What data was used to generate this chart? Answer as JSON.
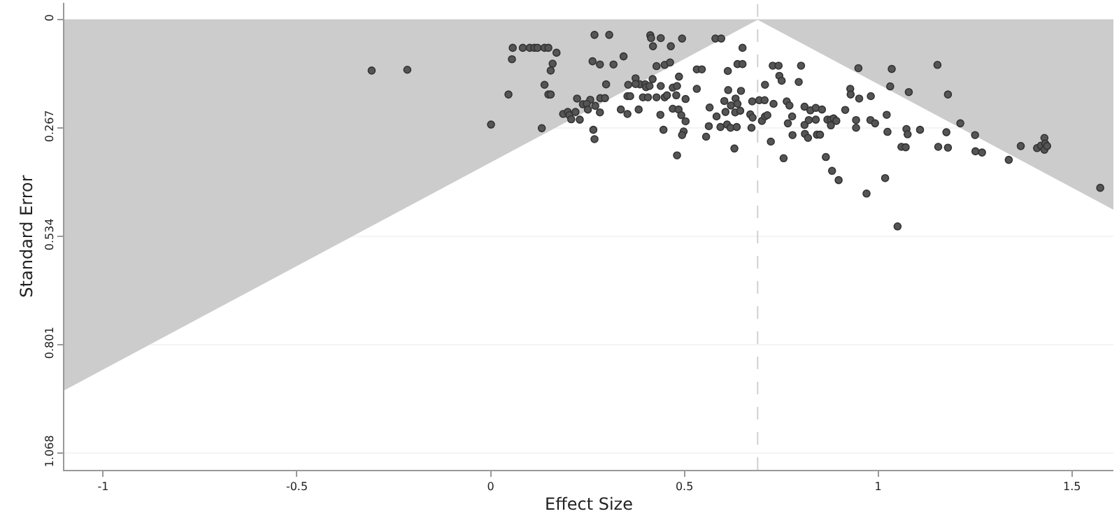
{
  "chart_data": {
    "type": "scatter",
    "xlabel": "Effect Size",
    "ylabel": "Standard Error",
    "xlim": [
      -1.1,
      1.607
    ],
    "ylim": [
      1.11,
      -0.041
    ],
    "xticks": [
      -1,
      -0.5,
      0,
      0.5,
      1,
      1.5
    ],
    "yticks": [
      0,
      0.267,
      0.534,
      0.801,
      1.068
    ],
    "grid": "y",
    "ref_lines": [
      {
        "axis": "x",
        "value": 0.689,
        "color": "#d0d0d0",
        "line_style": "dashed"
      }
    ],
    "series": [
      {
        "type": "area",
        "color": "#cccccc",
        "x": [
          -1.1,
          0.689,
          1.607
        ],
        "values": [
          0.913,
          0,
          0.468
        ]
      },
      {
        "color": "#555555",
        "marker": "circle",
        "x": [
          -0.307,
          -0.215,
          0.057,
          0.083,
          0.101,
          0.113,
          0.121,
          0.139,
          0.149,
          0.17,
          0.055,
          0.16,
          0.155,
          0.139,
          0.046,
          0.149,
          0.155,
          0.001,
          0.132,
          0.268,
          0.306,
          0.263,
          0.282,
          0.317,
          0.298,
          0.283,
          0.295,
          0.223,
          0.257,
          0.238,
          0.248,
          0.251,
          0.27,
          0.282,
          0.187,
          0.199,
          0.203,
          0.219,
          0.208,
          0.23,
          0.265,
          0.268,
          0.343,
          0.412,
          0.414,
          0.439,
          0.494,
          0.419,
          0.465,
          0.428,
          0.449,
          0.463,
          0.374,
          0.385,
          0.374,
          0.399,
          0.401,
          0.41,
          0.418,
          0.439,
          0.355,
          0.353,
          0.36,
          0.393,
          0.406,
          0.428,
          0.449,
          0.455,
          0.47,
          0.481,
          0.479,
          0.503,
          0.486,
          0.336,
          0.353,
          0.382,
          0.438,
          0.47,
          0.485,
          0.492,
          0.503,
          0.446,
          0.498,
          0.494,
          0.481,
          0.532,
          0.545,
          0.532,
          0.58,
          0.595,
          0.65,
          0.637,
          0.65,
          0.612,
          0.613,
          0.646,
          0.632,
          0.603,
          0.62,
          0.637,
          0.565,
          0.583,
          0.606,
          0.631,
          0.644,
          0.593,
          0.61,
          0.619,
          0.635,
          0.563,
          0.556,
          0.629,
          0.675,
          0.693,
          0.707,
          0.67,
          0.676,
          0.673,
          0.7,
          0.708,
          0.714,
          0.708,
          0.728,
          0.743,
          0.801,
          0.745,
          0.751,
          0.795,
          0.73,
          0.764,
          0.771,
          0.81,
          0.825,
          0.839,
          0.855,
          0.778,
          0.767,
          0.779,
          0.81,
          0.811,
          0.819,
          0.821,
          0.839,
          0.842,
          0.85,
          0.869,
          0.878,
          0.885,
          0.892,
          0.878,
          0.723,
          0.756,
          0.865,
          0.881,
          0.898,
          0.928,
          0.929,
          0.951,
          0.915,
          0.943,
          0.943,
          0.949,
          0.981,
          0.97,
          0.98,
          0.992,
          1.035,
          1.031,
          1.079,
          1.022,
          1.024,
          1.073,
          1.076,
          1.108,
          1.06,
          1.071,
          1.018,
          1.05,
          1.153,
          1.18,
          1.212,
          1.176,
          1.155,
          1.18,
          1.25,
          1.251,
          1.268,
          1.337,
          1.368,
          1.41,
          1.42,
          1.429,
          1.431,
          1.429,
          1.436,
          1.573
        ],
        "values": [
          0.126,
          0.124,
          0.07,
          0.07,
          0.07,
          0.07,
          0.07,
          0.07,
          0.07,
          0.082,
          0.098,
          0.109,
          0.126,
          0.161,
          0.185,
          0.185,
          0.185,
          0.259,
          0.268,
          0.038,
          0.038,
          0.103,
          0.111,
          0.111,
          0.16,
          0.194,
          0.194,
          0.195,
          0.198,
          0.209,
          0.208,
          0.222,
          0.213,
          0.229,
          0.233,
          0.228,
          0.236,
          0.228,
          0.246,
          0.247,
          0.272,
          0.295,
          0.091,
          0.039,
          0.046,
          0.046,
          0.047,
          0.066,
          0.066,
          0.115,
          0.112,
          0.106,
          0.145,
          0.16,
          0.159,
          0.16,
          0.167,
          0.164,
          0.147,
          0.164,
          0.161,
          0.189,
          0.189,
          0.192,
          0.192,
          0.192,
          0.192,
          0.187,
          0.168,
          0.164,
          0.187,
          0.196,
          0.141,
          0.222,
          0.233,
          0.222,
          0.235,
          0.22,
          0.222,
          0.236,
          0.251,
          0.272,
          0.276,
          0.285,
          0.335,
          0.123,
          0.123,
          0.171,
          0.047,
          0.047,
          0.07,
          0.11,
          0.11,
          0.127,
          0.174,
          0.176,
          0.195,
          0.201,
          0.212,
          0.208,
          0.217,
          0.239,
          0.228,
          0.229,
          0.225,
          0.265,
          0.259,
          0.267,
          0.265,
          0.263,
          0.289,
          0.318,
          0.202,
          0.199,
          0.199,
          0.234,
          0.242,
          0.267,
          0.25,
          0.239,
          0.236,
          0.161,
          0.114,
          0.114,
          0.114,
          0.139,
          0.151,
          0.154,
          0.208,
          0.202,
          0.212,
          0.215,
          0.224,
          0.218,
          0.222,
          0.239,
          0.256,
          0.285,
          0.26,
          0.282,
          0.292,
          0.248,
          0.247,
          0.284,
          0.284,
          0.247,
          0.247,
          0.244,
          0.25,
          0.261,
          0.301,
          0.342,
          0.339,
          0.373,
          0.396,
          0.171,
          0.185,
          0.195,
          0.223,
          0.248,
          0.267,
          0.12,
          0.189,
          0.429,
          0.248,
          0.256,
          0.122,
          0.165,
          0.179,
          0.235,
          0.277,
          0.27,
          0.283,
          0.272,
          0.314,
          0.315,
          0.391,
          0.51,
          0.112,
          0.185,
          0.256,
          0.278,
          0.314,
          0.316,
          0.285,
          0.325,
          0.328,
          0.346,
          0.312,
          0.317,
          0.311,
          0.292,
          0.306,
          0.321,
          0.312,
          0.415
        ]
      }
    ]
  }
}
